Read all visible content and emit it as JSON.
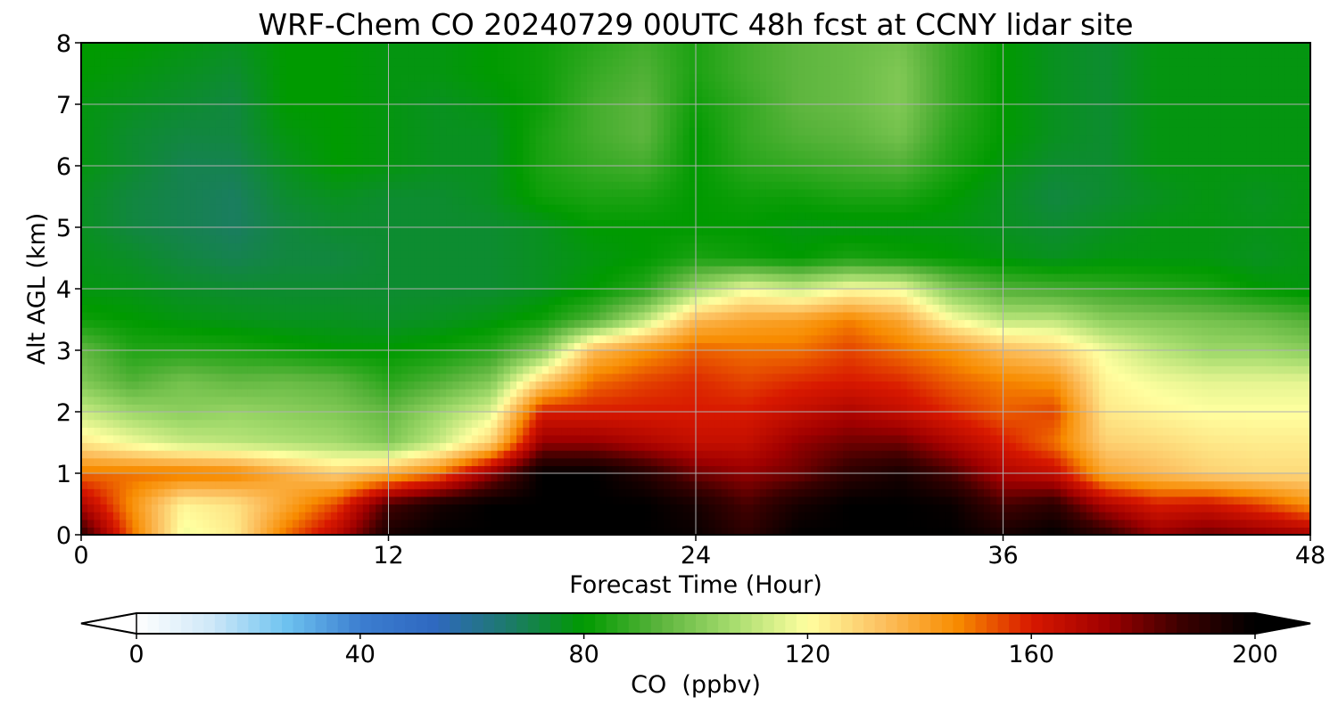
{
  "chart_data": {
    "type": "heatmap",
    "title": "WRF-Chem CO  20240729 00UTC 48h fcst at CCNY lidar site",
    "xlabel": "Forecast Time (Hour)",
    "ylabel": "Alt AGL (km)",
    "xlim": [
      0,
      48
    ],
    "ylim": [
      0,
      8
    ],
    "x_ticks": [
      "0",
      "12",
      "24",
      "36",
      "48"
    ],
    "y_ticks": [
      "0",
      "1",
      "2",
      "3",
      "4",
      "5",
      "6",
      "7",
      "8"
    ],
    "grid": true,
    "z_label": "CO  (ppbv)",
    "z_range": [
      0,
      200
    ],
    "colorbar_ticks": [
      "0",
      "40",
      "80",
      "120",
      "160",
      "200"
    ],
    "colorbar_extend": "both",
    "colorbar_colors": [
      "#ffffff",
      "#cfe8f8",
      "#6ec3f0",
      "#3c7ed0",
      "#2f68c0",
      "#1d7a6a",
      "#009a00",
      "#5ab43c",
      "#a6dc6e",
      "#ffffa0",
      "#fcc060",
      "#f88c00",
      "#d81800",
      "#a00000",
      "#3c0000",
      "#000000"
    ],
    "hours": [
      0,
      2,
      4,
      6,
      8,
      10,
      12,
      14,
      16,
      18,
      20,
      22,
      24,
      26,
      28,
      30,
      32,
      34,
      36,
      38,
      40,
      42,
      44,
      46,
      48
    ],
    "altitudes_km": [
      0,
      0.5,
      1,
      1.5,
      2,
      2.5,
      3,
      3.5,
      4,
      4.5,
      5,
      5.5,
      6,
      6.5,
      7,
      7.5,
      8
    ],
    "values_ppbv": [
      [
        190,
        150,
        118,
        124,
        150,
        168,
        195,
        200,
        200,
        200,
        200,
        200,
        198,
        190,
        200,
        200,
        200,
        200,
        195,
        200,
        190,
        175,
        180,
        176,
        172
      ],
      [
        170,
        145,
        122,
        126,
        140,
        155,
        185,
        195,
        200,
        200,
        200,
        200,
        195,
        185,
        195,
        200,
        200,
        198,
        185,
        190,
        170,
        160,
        162,
        155,
        145
      ],
      [
        150,
        150,
        150,
        148,
        138,
        130,
        138,
        150,
        175,
        200,
        200,
        192,
        180,
        175,
        180,
        190,
        195,
        185,
        170,
        165,
        140,
        135,
        130,
        128,
        128
      ],
      [
        125,
        118,
        112,
        110,
        108,
        106,
        100,
        112,
        130,
        175,
        175,
        170,
        165,
        165,
        175,
        180,
        180,
        170,
        160,
        150,
        130,
        128,
        125,
        124,
        124
      ],
      [
        112,
        105,
        102,
        104,
        102,
        100,
        95,
        105,
        115,
        160,
        160,
        160,
        160,
        160,
        165,
        170,
        165,
        158,
        152,
        155,
        125,
        122,
        120,
        120,
        120
      ],
      [
        100,
        92,
        98,
        95,
        96,
        94,
        86,
        92,
        100,
        130,
        150,
        155,
        158,
        155,
        158,
        160,
        158,
        152,
        148,
        145,
        122,
        118,
        116,
        116,
        116
      ],
      [
        95,
        85,
        85,
        84,
        82,
        80,
        80,
        82,
        86,
        100,
        135,
        145,
        152,
        150,
        150,
        155,
        150,
        145,
        135,
        130,
        118,
        110,
        105,
        105,
        102
      ],
      [
        82,
        80,
        78,
        77,
        76,
        76,
        75,
        76,
        78,
        82,
        92,
        110,
        135,
        140,
        142,
        148,
        140,
        120,
        110,
        110,
        102,
        100,
        98,
        96,
        92
      ],
      [
        78,
        77,
        75,
        74,
        74,
        74,
        74,
        74,
        74,
        76,
        80,
        86,
        105,
        118,
        112,
        120,
        118,
        100,
        92,
        90,
        88,
        86,
        84,
        80,
        78
      ],
      [
        77,
        75,
        72,
        70,
        72,
        72,
        74,
        74,
        74,
        76,
        78,
        80,
        84,
        82,
        80,
        84,
        82,
        80,
        78,
        76,
        78,
        78,
        78,
        76,
        78
      ],
      [
        76,
        72,
        70,
        68,
        72,
        74,
        74,
        74,
        74,
        76,
        80,
        80,
        80,
        80,
        78,
        78,
        78,
        78,
        76,
        74,
        76,
        78,
        78,
        77,
        78
      ],
      [
        76,
        72,
        70,
        68,
        74,
        76,
        74,
        74,
        76,
        82,
        84,
        84,
        80,
        82,
        82,
        84,
        84,
        80,
        76,
        72,
        74,
        76,
        78,
        76,
        78
      ],
      [
        78,
        74,
        70,
        70,
        76,
        80,
        78,
        76,
        76,
        84,
        88,
        90,
        80,
        86,
        88,
        90,
        92,
        84,
        78,
        74,
        74,
        78,
        78,
        78,
        78
      ],
      [
        78,
        74,
        72,
        72,
        78,
        80,
        78,
        76,
        76,
        84,
        90,
        94,
        80,
        88,
        92,
        94,
        98,
        86,
        80,
        76,
        74,
        78,
        78,
        78,
        78
      ],
      [
        78,
        76,
        74,
        72,
        80,
        80,
        78,
        76,
        78,
        82,
        90,
        94,
        82,
        88,
        94,
        96,
        100,
        88,
        80,
        76,
        74,
        78,
        78,
        78,
        78
      ],
      [
        80,
        78,
        76,
        74,
        80,
        80,
        78,
        78,
        80,
        82,
        88,
        92,
        84,
        90,
        94,
        96,
        100,
        88,
        80,
        76,
        74,
        78,
        78,
        78,
        78
      ],
      [
        80,
        80,
        78,
        76,
        80,
        80,
        78,
        78,
        80,
        82,
        86,
        90,
        84,
        90,
        94,
        96,
        98,
        88,
        80,
        76,
        74,
        78,
        78,
        78,
        78
      ]
    ]
  }
}
